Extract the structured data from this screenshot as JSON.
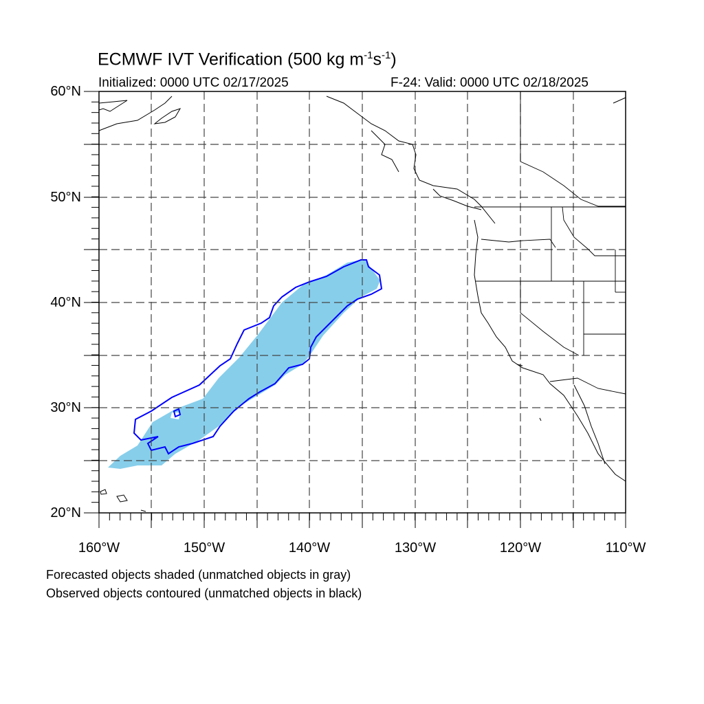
{
  "title": {
    "main": "ECMWF IVT Verification (500 kg m",
    "exp1": "-1",
    "mid": "s",
    "exp2": "-1",
    "end": ")"
  },
  "subtitle": {
    "left": "Initialized: 0000 UTC 02/17/2025",
    "right": "F-24: Valid: 0000 UTC 02/18/2025"
  },
  "map": {
    "lon_range": [
      -160,
      -110
    ],
    "lat_range": [
      20,
      60
    ],
    "lat_labels": [
      "60°N",
      "50°N",
      "40°N",
      "30°N",
      "20°N"
    ],
    "lon_labels": [
      "160°W",
      "150°W",
      "140°W",
      "130°W",
      "120°W",
      "110°W"
    ],
    "grid_lines": "dashed every 5 degrees",
    "forecast_color": "#87ceeb",
    "observed_color": "#0000ff",
    "coastline_color": "#000000"
  },
  "notes": [
    "Forecasted objects shaded (unmatched objects in gray)",
    "Observed objects contoured (unmatched objects in black)"
  ]
}
